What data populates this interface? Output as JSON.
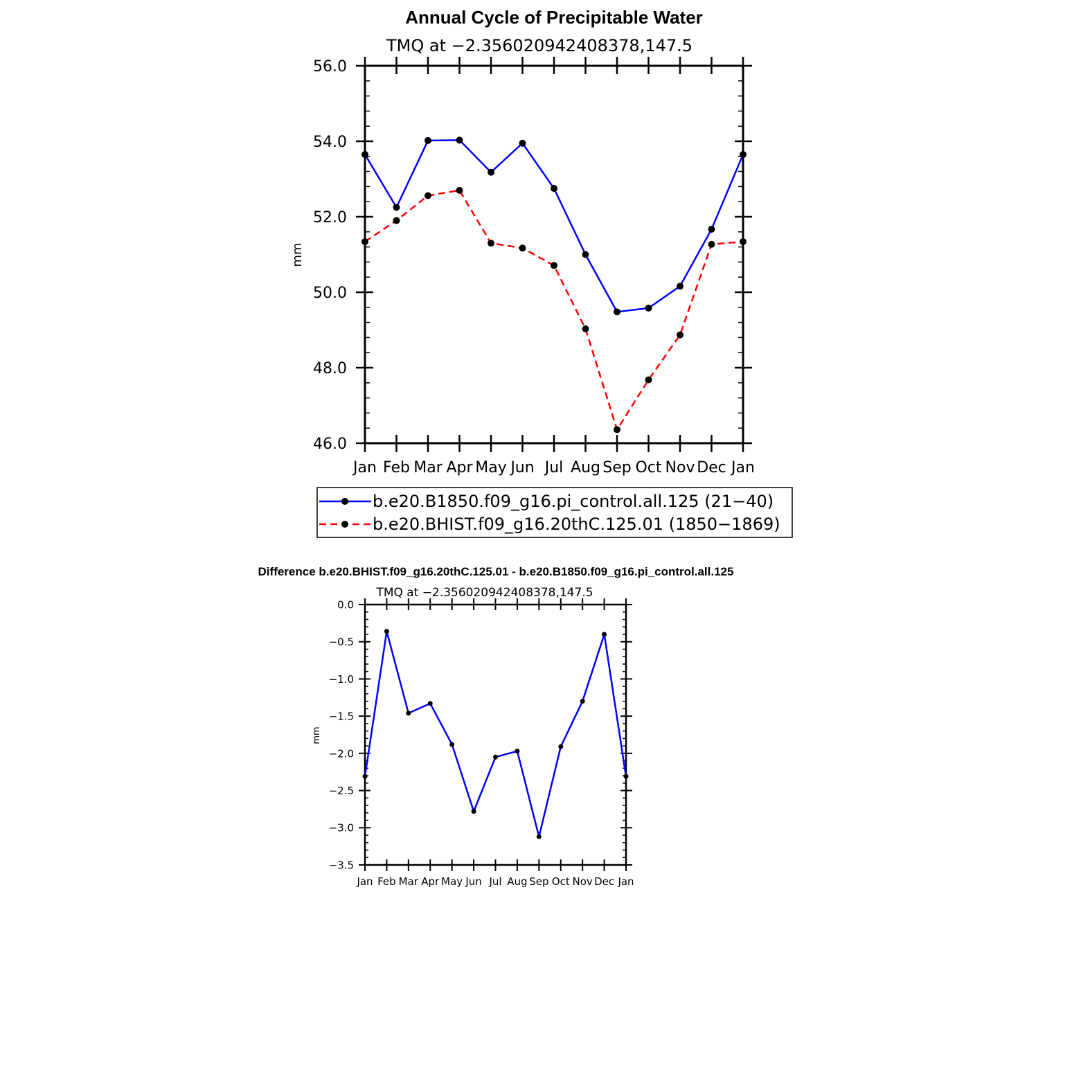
{
  "chart_data": [
    {
      "type": "line",
      "title": "Annual Cycle of Precipitable Water",
      "subtitle": "TMQ  at  −2.356020942408378,147.5",
      "xlabel": "",
      "ylabel": "mm",
      "categories": [
        "Jan",
        "Feb",
        "Mar",
        "Apr",
        "May",
        "Jun",
        "Jul",
        "Aug",
        "Sep",
        "Oct",
        "Nov",
        "Dec",
        "Jan"
      ],
      "ylim": [
        46.0,
        56.0
      ],
      "yticks": [
        "46.0",
        "48.0",
        "50.0",
        "52.0",
        "54.0",
        "56.0"
      ],
      "grid": false,
      "legend_position": "bottom",
      "series": [
        {
          "name": "b.e20.B1850.f09_g16.pi_control.all.125  (21−40)",
          "color": "#0000ff",
          "dash": "solid",
          "values": [
            53.65,
            52.25,
            54.02,
            54.03,
            53.18,
            53.95,
            52.75,
            51.0,
            49.48,
            49.58,
            50.16,
            51.67,
            53.65
          ]
        },
        {
          "name": "b.e20.BHIST.f09_g16.20thC.125.01  (1850−1869)",
          "color": "#ff0000",
          "dash": "dashed",
          "values": [
            51.34,
            51.9,
            52.56,
            52.7,
            51.3,
            51.17,
            50.71,
            49.03,
            46.36,
            47.68,
            48.87,
            51.27,
            51.34
          ]
        }
      ]
    },
    {
      "type": "line",
      "title": "Difference b.e20.BHIST.f09_g16.20thC.125.01 - b.e20.B1850.f09_g16.pi_control.all.125",
      "subtitle": "TMQ  at  −2.356020942408378,147.5",
      "xlabel": "",
      "ylabel": "mm",
      "categories": [
        "Jan",
        "Feb",
        "Mar",
        "Apr",
        "May",
        "Jun",
        "Jul",
        "Aug",
        "Sep",
        "Oct",
        "Nov",
        "Dec",
        "Jan"
      ],
      "ylim": [
        -3.5,
        0.0
      ],
      "yticks": [
        "−3.5",
        "−3.0",
        "−2.5",
        "−2.0",
        "−1.5",
        "−1.0",
        "−0.5",
        "0.0"
      ],
      "grid": false,
      "series": [
        {
          "color": "#0000ff",
          "dash": "solid",
          "values": [
            -2.31,
            -0.36,
            -1.46,
            -1.33,
            -1.88,
            -2.78,
            -2.05,
            -1.97,
            -3.12,
            -1.91,
            -1.3,
            -0.4,
            -2.31
          ]
        }
      ]
    }
  ]
}
